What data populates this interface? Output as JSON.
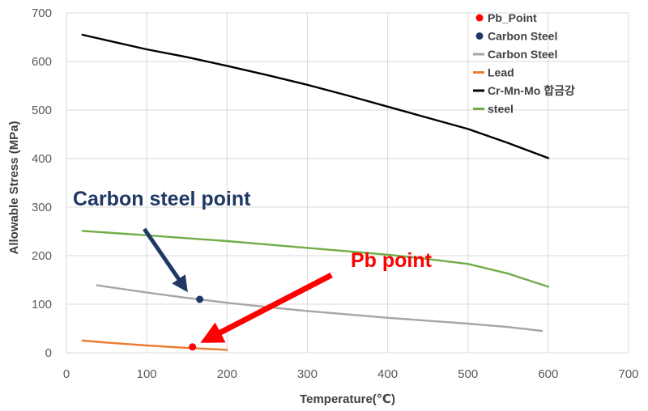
{
  "chart_data": {
    "type": "line",
    "title": "",
    "xlabel": "Temperature(℃)",
    "ylabel": "Allowable Stress (MPa)",
    "xlim": [
      0,
      700
    ],
    "ylim": [
      0,
      700
    ],
    "xticks": [
      "0",
      "100",
      "200",
      "300",
      "400",
      "500",
      "600",
      "700"
    ],
    "yticks": [
      "0",
      "100",
      "200",
      "300",
      "400",
      "500",
      "600",
      "700"
    ],
    "legend_position": "top-right",
    "series": [
      {
        "name": "Pb_Point",
        "kind": "point",
        "color": "#ff0000",
        "points": [
          [
            157,
            12
          ]
        ]
      },
      {
        "name": "Carbon Steel",
        "kind": "point",
        "color": "#1f3864",
        "points": [
          [
            166,
            110
          ]
        ]
      },
      {
        "name": "Carbon Steel",
        "kind": "line",
        "color": "#a6a6a6",
        "points": [
          [
            38,
            139
          ],
          [
            100,
            124
          ],
          [
            150,
            113
          ],
          [
            200,
            103
          ],
          [
            250,
            94
          ],
          [
            300,
            86
          ],
          [
            350,
            79
          ],
          [
            400,
            72
          ],
          [
            450,
            66
          ],
          [
            500,
            60
          ],
          [
            550,
            53
          ],
          [
            592,
            45
          ]
        ]
      },
      {
        "name": "Lead",
        "kind": "line",
        "color": "#ed7d31",
        "points": [
          [
            20,
            25
          ],
          [
            50,
            21
          ],
          [
            100,
            15
          ],
          [
            150,
            10
          ],
          [
            200,
            6
          ]
        ]
      },
      {
        "name": "Cr-Mn-Mo 합금강",
        "kind": "line",
        "color": "#000000",
        "points": [
          [
            20,
            655
          ],
          [
            100,
            625
          ],
          [
            150,
            609
          ],
          [
            200,
            591
          ],
          [
            250,
            572
          ],
          [
            300,
            552
          ],
          [
            350,
            530
          ],
          [
            400,
            507
          ],
          [
            450,
            484
          ],
          [
            500,
            461
          ],
          [
            550,
            432
          ],
          [
            600,
            401
          ]
        ]
      },
      {
        "name": "steel",
        "kind": "line",
        "color": "#70ad47",
        "points": [
          [
            20,
            251
          ],
          [
            100,
            242
          ],
          [
            150,
            236
          ],
          [
            200,
            230
          ],
          [
            250,
            223
          ],
          [
            300,
            216
          ],
          [
            350,
            209
          ],
          [
            400,
            202
          ],
          [
            450,
            193
          ],
          [
            500,
            183
          ],
          [
            550,
            163
          ],
          [
            600,
            136
          ]
        ]
      }
    ],
    "annotations": [
      {
        "text": "Carbon steel point",
        "color": "#1f3864",
        "arrow_from": [
          97,
          255
        ],
        "arrow_to": [
          146,
          137
        ]
      },
      {
        "text": "Pb point",
        "color": "#ff0000",
        "arrow_from": [
          330,
          160
        ],
        "arrow_to": [
          178,
          30
        ]
      }
    ]
  }
}
